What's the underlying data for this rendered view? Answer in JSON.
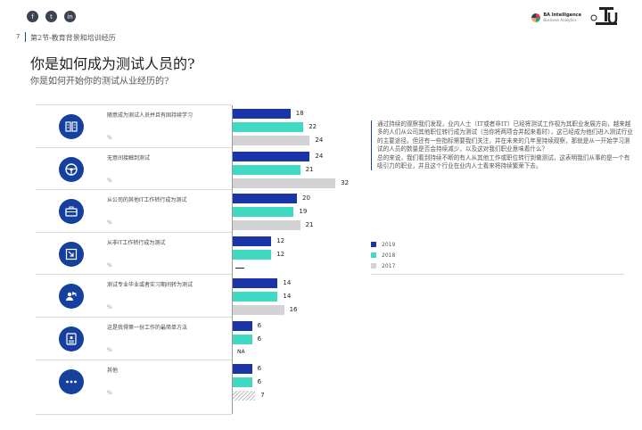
{
  "colors": {
    "y2019": "#1b35a8",
    "y2018": "#3fd9c4",
    "y2017": "#d3d3d6",
    "accent": "#15409e"
  },
  "social_icons": [
    {
      "icon": "facebook-icon",
      "glyph": "f"
    },
    {
      "icon": "twitter-icon",
      "glyph": "t"
    },
    {
      "icon": "linkedin-icon",
      "glyph": "in"
    }
  ],
  "logo": {
    "name": "BA Intelligence",
    "tagline": "Business Analytics"
  },
  "page_number": "7",
  "section": "第2节-教育背景和培训经历",
  "title": "你是如何成为测试人员的?",
  "subtitle": "你是如何开始你的测试从业经历的?",
  "chart_data": {
    "type": "bar",
    "orientation": "horizontal",
    "series": [
      {
        "name": "2019",
        "values": [
          18,
          24,
          20,
          12,
          14,
          6,
          6
        ]
      },
      {
        "name": "2018",
        "values": [
          22,
          21,
          19,
          12,
          14,
          6,
          6
        ]
      },
      {
        "name": "2017",
        "values": [
          24,
          32,
          21,
          null,
          16,
          null,
          7
        ]
      }
    ],
    "categories": [
      {
        "label": "随意成为测试人员并且有固持续学习",
        "unit": "%",
        "icon": "book-icon"
      },
      {
        "label": "无意间接触到测试",
        "unit": "%",
        "icon": "steering-wheel-icon"
      },
      {
        "label": "从公司的其他IT工作转行成为测试",
        "unit": "%",
        "icon": "briefcase-icon"
      },
      {
        "label": "从非IT工作转行成为测试",
        "unit": "%",
        "icon": "transfer-icon"
      },
      {
        "label": "测试专业毕业或者实习期间转为测试",
        "unit": "%",
        "icon": "graduate-icon"
      },
      {
        "label": "这是我得第一份工作的最简单方法",
        "unit": "%",
        "icon": "id-card-icon"
      },
      {
        "label": "其他",
        "unit": "%",
        "icon": "more-icon"
      }
    ],
    "notes": [
      {
        "category": 3,
        "series": "2017",
        "text": "—"
      },
      {
        "category": 5,
        "series": "2017",
        "text": "NA"
      }
    ],
    "legend": [
      "2019",
      "2018",
      "2017"
    ],
    "legend_position": "right"
  },
  "commentary": [
    "通过持续的观察我们发现，业内人士（IT或者非IT）已经将测试工作视为其职业发展方向，越来越多的人们从公司其他职位转行成为测试（当你将两项合并起来看时），这已经成为他们进入测试行业的主要途径。但还有一些指标需要我们关注，并在未来的几年里持续观察，那就是从一开始学习测试的人员的数量是否会持续减少，以及这对我们职业意味着什么？",
    "总的来说，我们看到持续不断的有人从其他工作或职位转行到做测试，这表明我们从事的是一个有吸引力的职业，并且这个行业在业内人士看来将持续繁荣下去。"
  ]
}
